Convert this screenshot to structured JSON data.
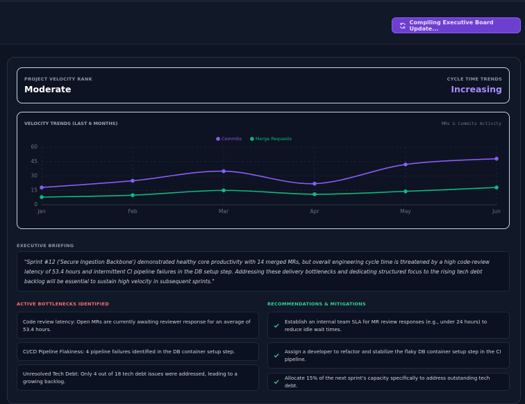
{
  "header": {
    "status_button": "Compiling Executive Board Update..."
  },
  "summary": {
    "rank_label": "PROJECT VELOCITY RANK",
    "rank": "Moderate",
    "trend_label": "CYCLE TIME TRENDS",
    "trend": "Increasing"
  },
  "chart_data": {
    "type": "line",
    "title": "VELOCITY TRENDS (LAST 6 MONTHS)",
    "subtitle": "MRs & Commits Activity",
    "categories": [
      "Jan",
      "Feb",
      "Mar",
      "Apr",
      "May",
      "Jun"
    ],
    "series": [
      {
        "name": "Commits",
        "color": "#8b5cf6",
        "values": [
          18,
          25,
          35,
          22,
          42,
          48
        ]
      },
      {
        "name": "Merge Requests",
        "color": "#10b981",
        "values": [
          8,
          10,
          15,
          11,
          14,
          18
        ]
      }
    ],
    "ylim": [
      0,
      60
    ],
    "yticks": [
      0,
      15,
      30,
      45,
      60
    ],
    "grid": true
  },
  "briefing": {
    "label": "EXECUTIVE BRIEFING",
    "text": "\"Sprint #12 ('Secure Ingestion Backbone') demonstrated healthy core productivity with 14 merged MRs, but overall engineering cycle time is threatened by a high code-review latency of 53.4 hours and intermittent CI pipeline failures in the DB setup step. Addressing these delivery bottlenecks and dedicating structured focus to the rising tech debt backlog will be essential to sustain high velocity in subsequent sprints.\""
  },
  "bottlenecks": {
    "title": "ACTIVE BOTTLENECKS IDENTIFIED",
    "items": [
      "Code review latency: Open MRs are currently awaiting reviewer response for an average of 53.4 hours.",
      "CI/CD Pipeline Flakiness: 4 pipeline failures identified in the DB container setup step.",
      "Unresolved Tech Debt: Only 4 out of 18 tech debt issues were addressed, leading to a growing backlog."
    ]
  },
  "recommendations": {
    "title": "RECOMMENDATIONS & MITIGATIONS",
    "items": [
      "Establish an internal team SLA for MR review responses (e.g., under 24 hours) to reduce idle wait times.",
      "Assign a developer to refactor and stabilize the flaky DB container setup step in the CI pipeline.",
      "Allocate 15% of the next sprint's capacity specifically to address outstanding tech debt."
    ]
  }
}
